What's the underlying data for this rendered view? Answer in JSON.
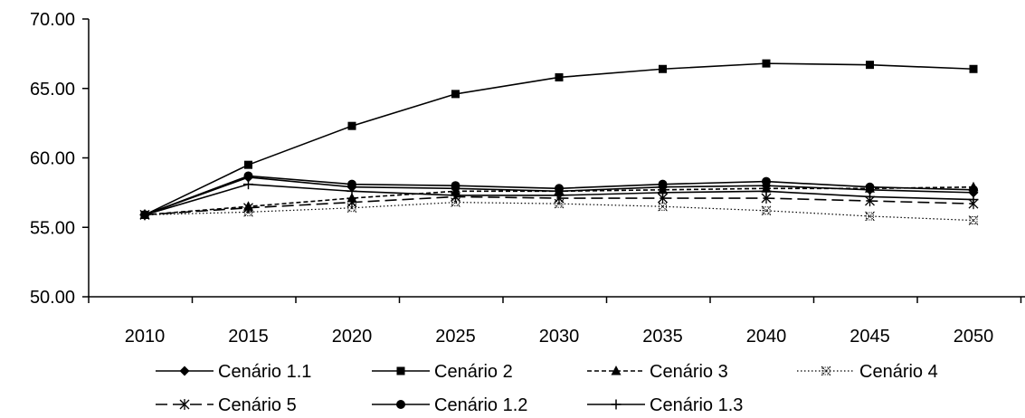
{
  "chart_data": {
    "type": "line",
    "x": [
      2010,
      2015,
      2020,
      2025,
      2030,
      2035,
      2040,
      2045,
      2050
    ],
    "x_tick_labels": [
      "2010",
      "2015",
      "2020",
      "2025",
      "2030",
      "2035",
      "2040",
      "2045",
      "2050"
    ],
    "ylim": [
      50,
      70
    ],
    "y_tick_labels": [
      "50.00",
      "55.00",
      "60.00",
      "65.00",
      "70.00"
    ],
    "y_ticks": [
      50,
      55,
      60,
      65,
      70
    ],
    "grid": false,
    "legend_position": "bottom",
    "series": [
      {
        "name": "Cenário 1.1",
        "marker": "diamond",
        "dash": "solid",
        "color": "#000000",
        "values": [
          55.9,
          58.6,
          57.9,
          57.8,
          57.6,
          57.9,
          58.0,
          57.7,
          57.5
        ]
      },
      {
        "name": "Cenário 2",
        "marker": "square",
        "dash": "solid",
        "color": "#000000",
        "values": [
          55.9,
          59.5,
          62.3,
          64.6,
          65.8,
          66.4,
          66.8,
          66.7,
          66.4
        ]
      },
      {
        "name": "Cenário 3",
        "marker": "triangle",
        "dash": "short-dash",
        "color": "#000000",
        "values": [
          55.9,
          56.5,
          57.1,
          57.6,
          57.6,
          57.7,
          57.8,
          57.8,
          57.9
        ]
      },
      {
        "name": "Cenário 4",
        "marker": "x-box",
        "dash": "dotted",
        "color": "#000000",
        "values": [
          55.9,
          56.1,
          56.4,
          56.8,
          56.7,
          56.5,
          56.2,
          55.8,
          55.5
        ]
      },
      {
        "name": "Cenário 5",
        "marker": "asterisk",
        "dash": "long-dash",
        "color": "#000000",
        "values": [
          55.9,
          56.4,
          56.8,
          57.2,
          57.1,
          57.1,
          57.1,
          56.9,
          56.7
        ]
      },
      {
        "name": "Cenário 1.2",
        "marker": "circle",
        "dash": "solid",
        "color": "#000000",
        "values": [
          55.9,
          58.7,
          58.1,
          58.0,
          57.8,
          58.1,
          58.3,
          57.9,
          57.7
        ]
      },
      {
        "name": "Cenário 1.3",
        "marker": "plus",
        "dash": "solid",
        "color": "#000000",
        "values": [
          55.9,
          58.1,
          57.6,
          57.3,
          57.3,
          57.5,
          57.6,
          57.2,
          57.0
        ]
      }
    ]
  }
}
